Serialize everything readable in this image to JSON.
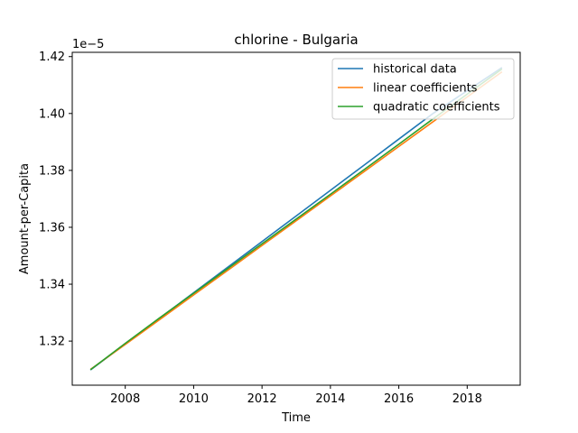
{
  "chart_data": {
    "type": "line",
    "title": "chlorine - Bulgaria",
    "xlabel": "Time",
    "ylabel": "Amount-per-Capita",
    "y_offset_label": "1e−5",
    "xlim": [
      2006.45,
      2019.55
    ],
    "ylim": [
      1.3045,
      1.4215
    ],
    "x_ticks": [
      2008,
      2010,
      2012,
      2014,
      2016,
      2018
    ],
    "x_tick_labels": [
      "2008",
      "2010",
      "2012",
      "2014",
      "2016",
      "2018"
    ],
    "y_ticks": [
      1.32,
      1.34,
      1.36,
      1.38,
      1.4,
      1.42
    ],
    "y_tick_labels": [
      "1.32",
      "1.34",
      "1.36",
      "1.38",
      "1.40",
      "1.42"
    ],
    "legend_position": "top-right",
    "grid": false,
    "x": [
      2007,
      2008,
      2009,
      2010,
      2011,
      2012,
      2013,
      2014,
      2015,
      2016,
      2017,
      2018,
      2019
    ],
    "series": [
      {
        "name": "historical data",
        "color": "#1f77b4",
        "values": [
          1.31,
          1.319,
          1.328,
          1.337,
          1.346,
          1.355,
          1.364,
          1.373,
          1.382,
          1.391,
          1.4,
          1.408,
          1.416
        ]
      },
      {
        "name": "linear coefficients",
        "color": "#ff7f0e",
        "values": [
          1.3102,
          1.3188,
          1.3275,
          1.3362,
          1.3449,
          1.3536,
          1.3623,
          1.371,
          1.3797,
          1.3884,
          1.3971,
          1.4058,
          1.4145
        ]
      },
      {
        "name": "quadratic coefficients",
        "color": "#2ca02c",
        "values": [
          1.3101,
          1.3192,
          1.3281,
          1.3368,
          1.3455,
          1.3542,
          1.3629,
          1.3716,
          1.3804,
          1.3892,
          1.3981,
          1.4068,
          1.4155
        ]
      }
    ]
  }
}
